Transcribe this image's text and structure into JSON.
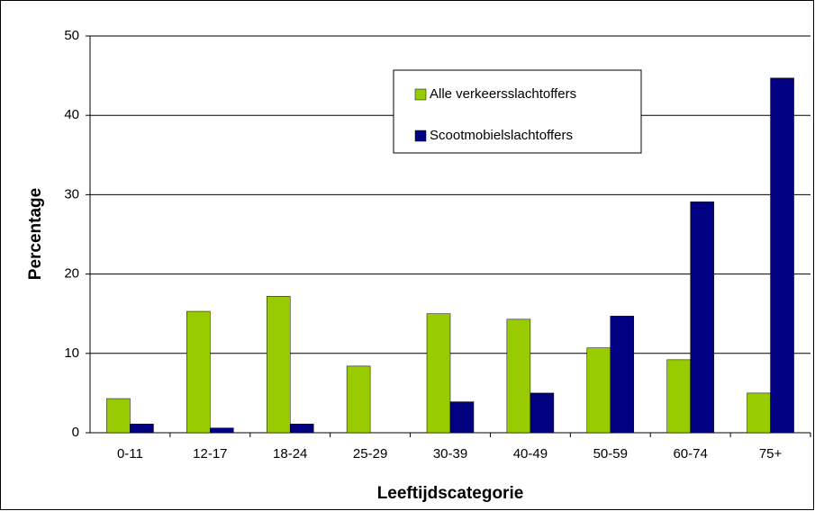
{
  "chart_data": {
    "type": "bar",
    "x_label": "Leeftijdscategorie",
    "y_label": "Percentage",
    "categories": [
      "0-11",
      "12-17",
      "18-24",
      "25-29",
      "30-39",
      "40-49",
      "50-59",
      "60-74",
      "75+"
    ],
    "series": [
      {
        "name": "Alle verkeersslachtoffers",
        "color": "#99cc00",
        "values": [
          4.3,
          15.3,
          17.2,
          8.4,
          15.0,
          14.3,
          10.7,
          9.2,
          5.0
        ]
      },
      {
        "name": "Scootmobielslachtoffers",
        "color": "#000080",
        "values": [
          1.1,
          0.6,
          1.1,
          0,
          3.9,
          5.0,
          14.7,
          29.1,
          44.7
        ]
      }
    ],
    "ylim": [
      0,
      50
    ],
    "yticks": [
      0,
      10,
      20,
      30,
      40,
      50
    ],
    "grid": true
  }
}
